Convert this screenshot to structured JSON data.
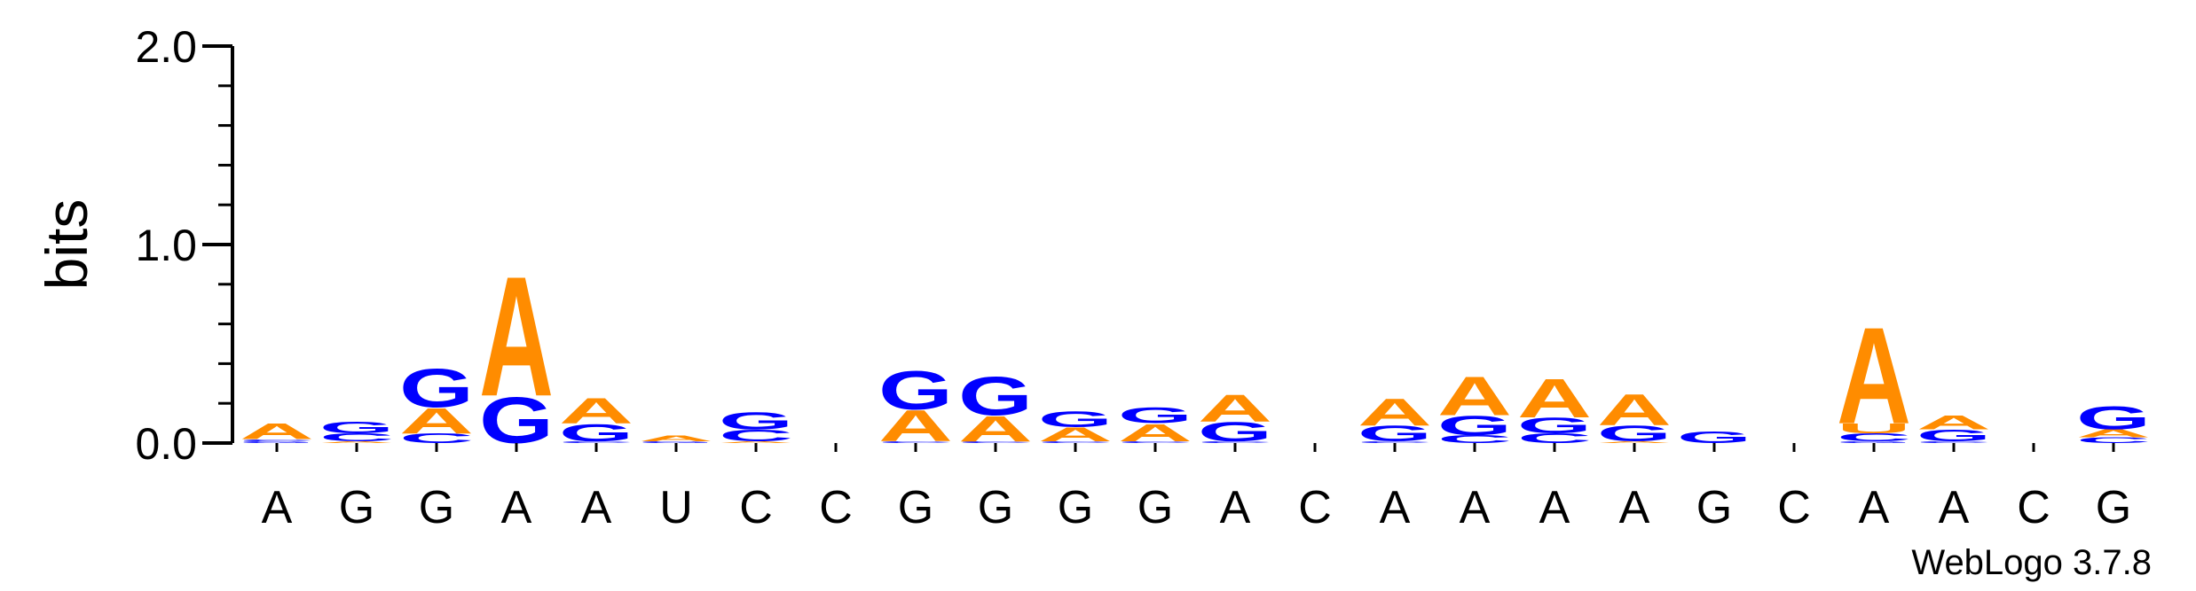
{
  "chart_data": {
    "type": "sequence-logo",
    "ylabel": "bits",
    "ylim": [
      0,
      2.0
    ],
    "yticks": [
      "0.0",
      "1.0",
      "2.0"
    ],
    "colors": {
      "A": "#ff8c00",
      "G": "#0000ff",
      "C": "#0000ff",
      "U": "#ff8c00"
    },
    "credit": "WebLogo 3.7.8",
    "positions": [
      {
        "label": "A",
        "stack": [
          {
            "base": "G",
            "h": 0.01
          },
          {
            "base": "C",
            "h": 0.01
          },
          {
            "base": "A",
            "h": 0.08
          }
        ]
      },
      {
        "label": "G",
        "stack": [
          {
            "base": "A",
            "h": 0.01
          },
          {
            "base": "C",
            "h": 0.04
          },
          {
            "base": "G",
            "h": 0.06
          }
        ]
      },
      {
        "label": "G",
        "stack": [
          {
            "base": "C",
            "h": 0.05
          },
          {
            "base": "A",
            "h": 0.13
          },
          {
            "base": "G",
            "h": 0.2
          }
        ]
      },
      {
        "label": "A",
        "stack": [
          {
            "base": "G",
            "h": 0.24
          },
          {
            "base": "A",
            "h": 0.62
          }
        ]
      },
      {
        "label": "A",
        "stack": [
          {
            "base": "C",
            "h": 0.01
          },
          {
            "base": "G",
            "h": 0.09
          },
          {
            "base": "A",
            "h": 0.13
          }
        ]
      },
      {
        "label": "U",
        "stack": [
          {
            "base": "G",
            "h": 0.01
          },
          {
            "base": "A",
            "h": 0.03
          }
        ]
      },
      {
        "label": "C",
        "stack": [
          {
            "base": "A",
            "h": 0.01
          },
          {
            "base": "C",
            "h": 0.06
          },
          {
            "base": "G",
            "h": 0.09
          }
        ]
      },
      {
        "label": "C",
        "stack": []
      },
      {
        "label": "G",
        "stack": [
          {
            "base": "C",
            "h": 0.01
          },
          {
            "base": "A",
            "h": 0.16
          },
          {
            "base": "G",
            "h": 0.2
          }
        ]
      },
      {
        "label": "G",
        "stack": [
          {
            "base": "C",
            "h": 0.01
          },
          {
            "base": "A",
            "h": 0.13
          },
          {
            "base": "G",
            "h": 0.2
          }
        ]
      },
      {
        "label": "G",
        "stack": [
          {
            "base": "C",
            "h": 0.01
          },
          {
            "base": "A",
            "h": 0.07
          },
          {
            "base": "G",
            "h": 0.08
          }
        ]
      },
      {
        "label": "G",
        "stack": [
          {
            "base": "C",
            "h": 0.01
          },
          {
            "base": "A",
            "h": 0.09
          },
          {
            "base": "G",
            "h": 0.08
          }
        ]
      },
      {
        "label": "A",
        "stack": [
          {
            "base": "C",
            "h": 0.01
          },
          {
            "base": "G",
            "h": 0.1
          },
          {
            "base": "A",
            "h": 0.14
          }
        ]
      },
      {
        "label": "C",
        "stack": []
      },
      {
        "label": "A",
        "stack": [
          {
            "base": "C",
            "h": 0.01
          },
          {
            "base": "G",
            "h": 0.08
          },
          {
            "base": "A",
            "h": 0.14
          }
        ]
      },
      {
        "label": "A",
        "stack": [
          {
            "base": "C",
            "h": 0.04
          },
          {
            "base": "G",
            "h": 0.1
          },
          {
            "base": "A",
            "h": 0.2
          }
        ]
      },
      {
        "label": "A",
        "stack": [
          {
            "base": "C",
            "h": 0.05
          },
          {
            "base": "G",
            "h": 0.08
          },
          {
            "base": "A",
            "h": 0.2
          }
        ]
      },
      {
        "label": "A",
        "stack": [
          {
            "base": "A",
            "h": 0.01
          },
          {
            "base": "G",
            "h": 0.08
          },
          {
            "base": "A",
            "h": 0.16
          }
        ]
      },
      {
        "label": "G",
        "stack": [
          {
            "base": "G",
            "h": 0.06
          }
        ]
      },
      {
        "label": "C",
        "stack": []
      },
      {
        "label": "A",
        "stack": [
          {
            "base": "G",
            "h": 0.01
          },
          {
            "base": "C",
            "h": 0.04
          },
          {
            "base": "U",
            "h": 0.05
          },
          {
            "base": "A",
            "h": 0.5
          }
        ]
      },
      {
        "label": "A",
        "stack": [
          {
            "base": "C",
            "h": 0.01
          },
          {
            "base": "G",
            "h": 0.06
          },
          {
            "base": "A",
            "h": 0.07
          }
        ]
      },
      {
        "label": "C",
        "stack": []
      },
      {
        "label": "G",
        "stack": [
          {
            "base": "C",
            "h": 0.03
          },
          {
            "base": "A",
            "h": 0.04
          },
          {
            "base": "G",
            "h": 0.12
          }
        ]
      }
    ]
  }
}
